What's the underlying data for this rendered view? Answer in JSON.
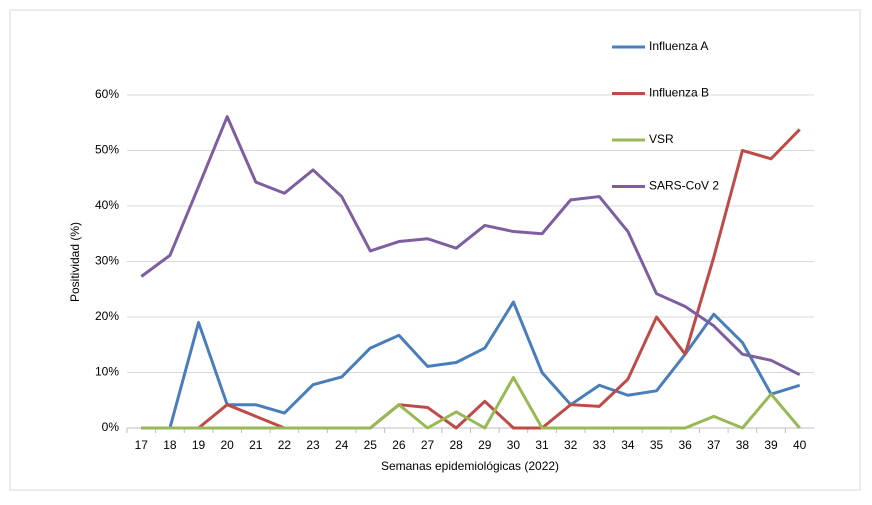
{
  "chart_data": {
    "type": "line",
    "x_label": "Semanas epidemiológicas (2022)",
    "y_label": "Positividad (%)",
    "categories": [
      "17",
      "18",
      "19",
      "20",
      "21",
      "22",
      "23",
      "24",
      "25",
      "26",
      "27",
      "28",
      "29",
      "30",
      "31",
      "32",
      "33",
      "34",
      "35",
      "36",
      "37",
      "38",
      "39",
      "40"
    ],
    "series": [
      {
        "name": "Influenza A",
        "color": "#4a7ebb",
        "values": [
          0,
          0,
          19,
          4.2,
          4.2,
          2.7,
          7.8,
          9.2,
          14.4,
          16.7,
          11.1,
          11.8,
          14.4,
          22.7,
          10,
          4.2,
          7.7,
          5.9,
          6.7,
          13.3,
          20.5,
          15.4,
          6.1,
          7.7
        ]
      },
      {
        "name": "Influenza B",
        "color": "#be4b48",
        "values": [
          0,
          0,
          0,
          4.2,
          2.1,
          0,
          0,
          0,
          0,
          4.2,
          3.7,
          0,
          4.8,
          0,
          0,
          4.2,
          3.9,
          8.8,
          20,
          13.3,
          30.8,
          50,
          48.5,
          53.8
        ]
      },
      {
        "name": "VSR",
        "color": "#98b954",
        "values": [
          0,
          0,
          0,
          0,
          0,
          0,
          0,
          0,
          0,
          4.2,
          0,
          2.9,
          0,
          9.1,
          0,
          0,
          0,
          0,
          0,
          0,
          2.1,
          0,
          6.1,
          0
        ]
      },
      {
        "name": "SARS-CoV 2",
        "color": "#7d5fa0",
        "values": [
          27.3,
          31.1,
          43.5,
          56.1,
          44.3,
          42.3,
          46.5,
          41.7,
          31.9,
          33.6,
          34.1,
          32.4,
          36.5,
          35.4,
          35,
          41.1,
          41.7,
          35.4,
          24.2,
          21.9,
          18.4,
          13.3,
          12.2,
          9.6
        ]
      }
    ],
    "ylim": [
      0,
      60
    ],
    "yticks": [
      {
        "value": 0,
        "label": "0%"
      },
      {
        "value": 10,
        "label": "10%"
      },
      {
        "value": 20,
        "label": "20%"
      },
      {
        "value": 30,
        "label": "30%"
      },
      {
        "value": 40,
        "label": "40%"
      },
      {
        "value": 50,
        "label": "50%"
      },
      {
        "value": 60,
        "label": "60%"
      }
    ],
    "grid": true,
    "legend": "top-right"
  }
}
